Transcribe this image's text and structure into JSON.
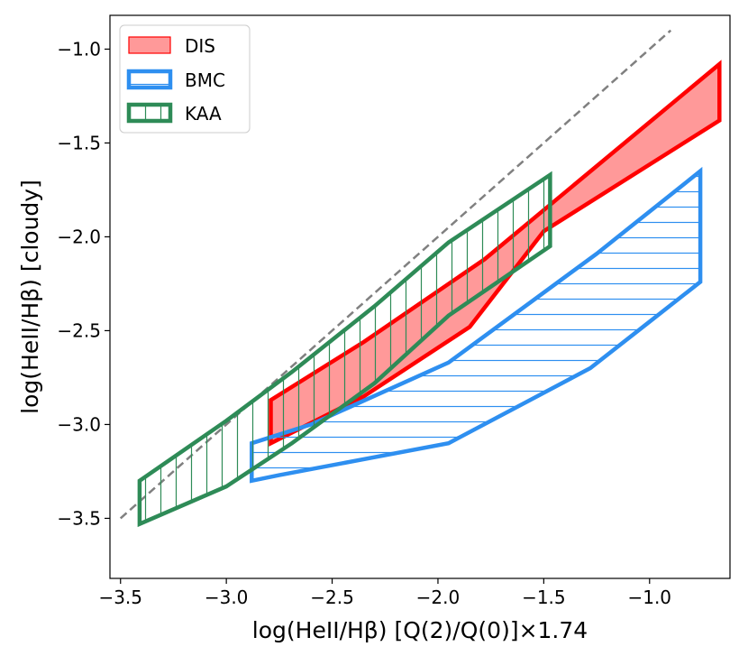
{
  "chart_data": {
    "type": "area",
    "xlabel": "log(HeII/Hβ) [Q(2)/Q(0)]×1.74",
    "ylabel": "log(HeII/Hβ) [cloudy]",
    "xlim": [
      -3.55,
      -0.62
    ],
    "ylim": [
      -3.82,
      -0.82
    ],
    "xticks": [
      -3.5,
      -3.0,
      -2.5,
      -2.0,
      -1.5,
      -1.0
    ],
    "xtick_labels": [
      "−3.5",
      "−3.0",
      "−2.5",
      "−2.0",
      "−1.5",
      "−1.0"
    ],
    "yticks": [
      -3.5,
      -3.0,
      -2.5,
      -2.0,
      -1.5,
      -1.0
    ],
    "ytick_labels": [
      "−3.5",
      "−3.0",
      "−2.5",
      "−2.0",
      "−1.5",
      "−1.0"
    ],
    "grid": false,
    "legend_position": "top-left",
    "reference_line": {
      "style": "dashed",
      "color": "#808080",
      "x": [
        -3.5,
        -0.9
      ],
      "y": [
        -3.5,
        -0.9
      ]
    },
    "series": [
      {
        "name": "DIS",
        "style": "filled",
        "fill": "#ff9999",
        "stroke": "#ff0000",
        "polygon": [
          [
            -2.79,
            -3.1
          ],
          [
            -2.79,
            -2.87
          ],
          [
            -2.35,
            -2.56
          ],
          [
            -1.78,
            -2.12
          ],
          [
            -0.67,
            -1.08
          ],
          [
            -0.67,
            -1.38
          ],
          [
            -1.5,
            -1.97
          ],
          [
            -1.85,
            -2.48
          ],
          [
            -2.35,
            -2.85
          ],
          [
            -2.79,
            -3.1
          ]
        ]
      },
      {
        "name": "BMC",
        "style": "hatch-horizontal",
        "fill": "none",
        "stroke": "#2e8ff0",
        "polygon": [
          [
            -2.88,
            -3.3
          ],
          [
            -2.88,
            -3.1
          ],
          [
            -2.6,
            -3.0
          ],
          [
            -1.95,
            -2.67
          ],
          [
            -1.25,
            -2.09
          ],
          [
            -0.76,
            -1.65
          ],
          [
            -0.76,
            -2.24
          ],
          [
            -1.02,
            -2.47
          ],
          [
            -1.28,
            -2.7
          ],
          [
            -1.95,
            -3.1
          ],
          [
            -2.75,
            -3.27
          ],
          [
            -2.88,
            -3.3
          ]
        ]
      },
      {
        "name": "KAA",
        "style": "hatch-vertical",
        "fill": "none",
        "stroke": "#2e8b57",
        "polygon": [
          [
            -3.41,
            -3.3
          ],
          [
            -3.41,
            -3.53
          ],
          [
            -3.0,
            -3.33
          ],
          [
            -2.69,
            -3.1
          ],
          [
            -2.3,
            -2.78
          ],
          [
            -1.95,
            -2.42
          ],
          [
            -1.47,
            -2.05
          ],
          [
            -1.47,
            -1.67
          ],
          [
            -1.95,
            -2.03
          ],
          [
            -2.3,
            -2.37
          ],
          [
            -2.69,
            -2.72
          ],
          [
            -3.0,
            -2.98
          ],
          [
            -3.41,
            -3.3
          ]
        ]
      }
    ]
  }
}
